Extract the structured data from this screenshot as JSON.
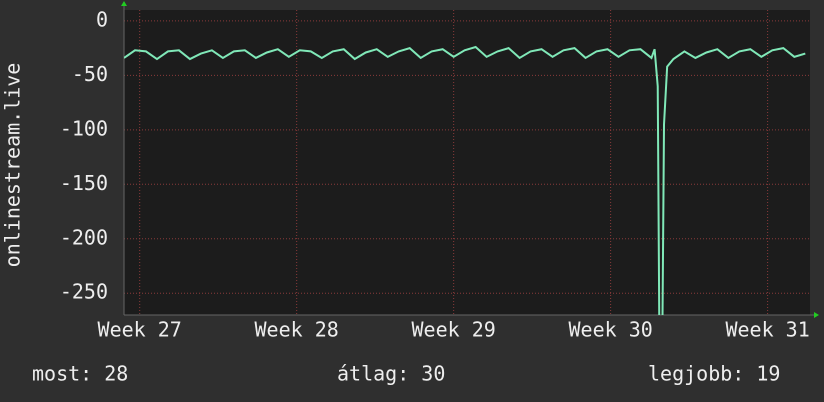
{
  "chart_data": {
    "type": "line",
    "y_label": "onlinestream.live",
    "xlim": [
      26.9,
      31.27
    ],
    "xticks": [
      {
        "value": 27,
        "label": "Week 27"
      },
      {
        "value": 28,
        "label": "Week 28"
      },
      {
        "value": 29,
        "label": "Week 29"
      },
      {
        "value": 30,
        "label": "Week 30"
      },
      {
        "value": 31,
        "label": "Week 31"
      }
    ],
    "ylim": [
      -270,
      10
    ],
    "yticks": [
      0,
      -50,
      -100,
      -150,
      -200,
      -250
    ],
    "grid": true,
    "x": [
      26.9,
      26.97,
      27.04,
      27.11,
      27.18,
      27.25,
      27.32,
      27.39,
      27.46,
      27.53,
      27.6,
      27.67,
      27.74,
      27.81,
      27.88,
      27.95,
      28.02,
      28.09,
      28.16,
      28.23,
      28.3,
      28.37,
      28.44,
      28.51,
      28.58,
      28.65,
      28.72,
      28.79,
      28.86,
      28.93,
      29.0,
      29.07,
      29.14,
      29.21,
      29.28,
      29.35,
      29.42,
      29.49,
      29.56,
      29.63,
      29.7,
      29.77,
      29.84,
      29.91,
      29.98,
      30.05,
      30.12,
      30.19,
      30.26,
      30.28,
      30.3,
      30.31,
      30.33,
      30.34,
      30.36,
      30.4,
      30.47,
      30.54,
      30.61,
      30.68,
      30.75,
      30.82,
      30.89,
      30.96,
      31.03,
      31.1,
      31.17,
      31.24
    ],
    "series": [
      {
        "name": "onlinestream.live",
        "color": "#80e8b8",
        "values": [
          -34,
          -27,
          -28,
          -35,
          -28,
          -27,
          -35,
          -30,
          -27,
          -34,
          -28,
          -27,
          -34,
          -29,
          -26,
          -33,
          -27,
          -28,
          -34,
          -28,
          -26,
          -35,
          -29,
          -26,
          -33,
          -28,
          -25,
          -34,
          -28,
          -26,
          -33,
          -27,
          -24,
          -33,
          -28,
          -25,
          -34,
          -28,
          -26,
          -33,
          -27,
          -25,
          -34,
          -28,
          -26,
          -33,
          -27,
          -26,
          -34,
          -26,
          -60,
          -280,
          -280,
          -95,
          -42,
          -35,
          -28,
          -34,
          -29,
          -26,
          -34,
          -28,
          -26,
          -33,
          -27,
          -25,
          -33,
          -30
        ]
      }
    ],
    "annotations": [
      "most: 28",
      "átlag: 30",
      "legjobb: 19"
    ]
  }
}
